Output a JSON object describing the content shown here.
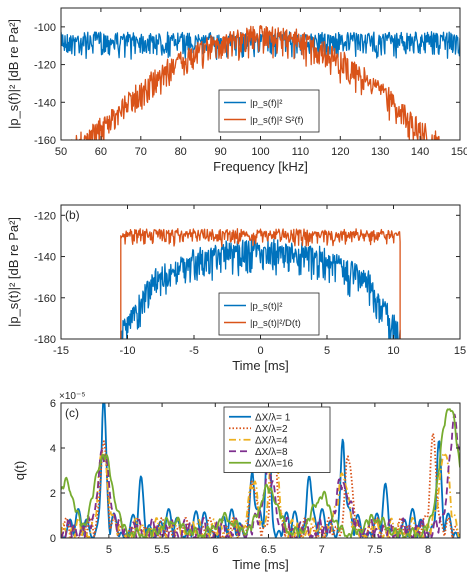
{
  "chart_data": [
    {
      "type": "line",
      "panel": "a",
      "xlabel": "Frequency [kHz]",
      "ylabel": "|p_s(f)|² [dB re Pa²]",
      "xlim": [
        50,
        150
      ],
      "ylim": [
        -160,
        -90
      ],
      "xticks": [
        50,
        60,
        70,
        80,
        90,
        100,
        110,
        120,
        130,
        140,
        150
      ],
      "yticks": [
        -160,
        -140,
        -120,
        -100
      ],
      "legend_position": "lower-center",
      "grid": false,
      "series": [
        {
          "name": "|p_s(f)|²",
          "color": "#0072BD",
          "shape": "flat",
          "level": -104,
          "noise": 12,
          "x": [
            50,
            60,
            70,
            80,
            90,
            100,
            110,
            120,
            130,
            140,
            150
          ],
          "values": [
            -104,
            -104,
            -104,
            -104,
            -104,
            -104,
            -104,
            -104,
            -104,
            -104,
            -104
          ]
        },
        {
          "name": "|p_s(f)|² S²(f)",
          "color": "#D95319",
          "shape": "bell",
          "x": [
            50,
            60,
            70,
            80,
            90,
            100,
            110,
            120,
            130,
            140,
            150
          ],
          "values": [
            -165,
            -150,
            -130,
            -114,
            -104,
            -100,
            -104,
            -114,
            -130,
            -150,
            -165
          ]
        }
      ]
    },
    {
      "type": "line",
      "panel": "b",
      "label": "(b)",
      "xlabel": "Time [ms]",
      "ylabel": "|p_s(t)|² [dB re Pa²]",
      "xlim": [
        -15,
        15
      ],
      "ylim": [
        -180,
        -115
      ],
      "xticks": [
        -15,
        -10,
        -5,
        0,
        5,
        10,
        15
      ],
      "yticks": [
        -180,
        -160,
        -140,
        -120
      ],
      "legend_position": "lower-center",
      "grid": false,
      "series": [
        {
          "name": "|p_s(t)|²",
          "color": "#0072BD",
          "shape": "dome",
          "x": [
            -10.5,
            -8,
            -5,
            -2,
            0,
            2,
            5,
            8,
            10.5
          ],
          "values": [
            -175,
            -148,
            -138,
            -134,
            -133,
            -134,
            -138,
            -148,
            -175
          ]
        },
        {
          "name": "|p_s(t)|²/D(t)",
          "color": "#D95319",
          "shape": "flat",
          "level": -128,
          "noise": 6,
          "x": [
            -10.5,
            -5,
            0,
            5,
            10.5
          ],
          "values": [
            -128,
            -128,
            -128,
            -128,
            -128
          ]
        }
      ]
    },
    {
      "type": "line",
      "panel": "c",
      "label": "(c)",
      "xlabel": "Time [ms]",
      "ylabel": "q(t)",
      "exponent": "×10⁻⁵",
      "xlim": [
        4.55,
        8.3
      ],
      "ylim": [
        0,
        6
      ],
      "xticks": [
        5,
        5.5,
        6,
        6.5,
        7,
        7.5,
        8
      ],
      "xticklabels": [
        "5",
        "5.5",
        "6",
        "6.5",
        "7",
        "7.5",
        "8"
      ],
      "yticks": [
        0,
        2,
        4,
        6
      ],
      "legend_position": "top-center",
      "grid": false,
      "series": [
        {
          "name": "ΔX/λ= 1",
          "color": "#0072BD",
          "dash": "solid",
          "peaks": [
            [
              4.95,
              5.4,
              0.03
            ],
            [
              5.3,
              1.5,
              0.03
            ],
            [
              6.35,
              2.4,
              0.03
            ],
            [
              6.5,
              4.7,
              0.03
            ],
            [
              6.88,
              2.7,
              0.03
            ],
            [
              7.2,
              3.9,
              0.03
            ],
            [
              7.6,
              1.2,
              0.03
            ],
            [
              8.1,
              3.2,
              0.03
            ]
          ]
        },
        {
          "name": "ΔX/λ=2",
          "color": "#D95319",
          "dash": "dotted",
          "peaks": [
            [
              4.95,
              4.2,
              0.04
            ],
            [
              6.35,
              2.2,
              0.04
            ],
            [
              6.55,
              4.4,
              0.04
            ],
            [
              7.25,
              3.4,
              0.04
            ],
            [
              8.05,
              4.3,
              0.04
            ]
          ]
        },
        {
          "name": "ΔX/λ=4",
          "color": "#EDB120",
          "dash": "dashdot",
          "peaks": [
            [
              4.95,
              3.6,
              0.06
            ],
            [
              6.35,
              2.0,
              0.06
            ],
            [
              6.55,
              3.6,
              0.06
            ],
            [
              7.2,
              2.7,
              0.06
            ],
            [
              8.15,
              3.7,
              0.06
            ]
          ]
        },
        {
          "name": "ΔX/λ=8",
          "color": "#7E2F8E",
          "dash": "dashed",
          "peaks": [
            [
              4.95,
              3.3,
              0.08
            ],
            [
              6.5,
              2.5,
              0.08
            ],
            [
              7.2,
              2.2,
              0.08
            ],
            [
              8.25,
              4.6,
              0.08
            ]
          ]
        },
        {
          "name": "ΔX/λ=16",
          "color": "#77AC30",
          "dash": "solid",
          "peaks": [
            [
              4.6,
              2.3,
              0.1
            ],
            [
              4.95,
              3.5,
              0.12
            ],
            [
              5.6,
              0.6,
              0.12
            ],
            [
              6.1,
              0.7,
              0.12
            ],
            [
              6.5,
              2.0,
              0.12
            ],
            [
              7.0,
              1.7,
              0.12
            ],
            [
              7.5,
              0.7,
              0.12
            ],
            [
              8.2,
              5.7,
              0.12
            ]
          ]
        }
      ]
    }
  ]
}
